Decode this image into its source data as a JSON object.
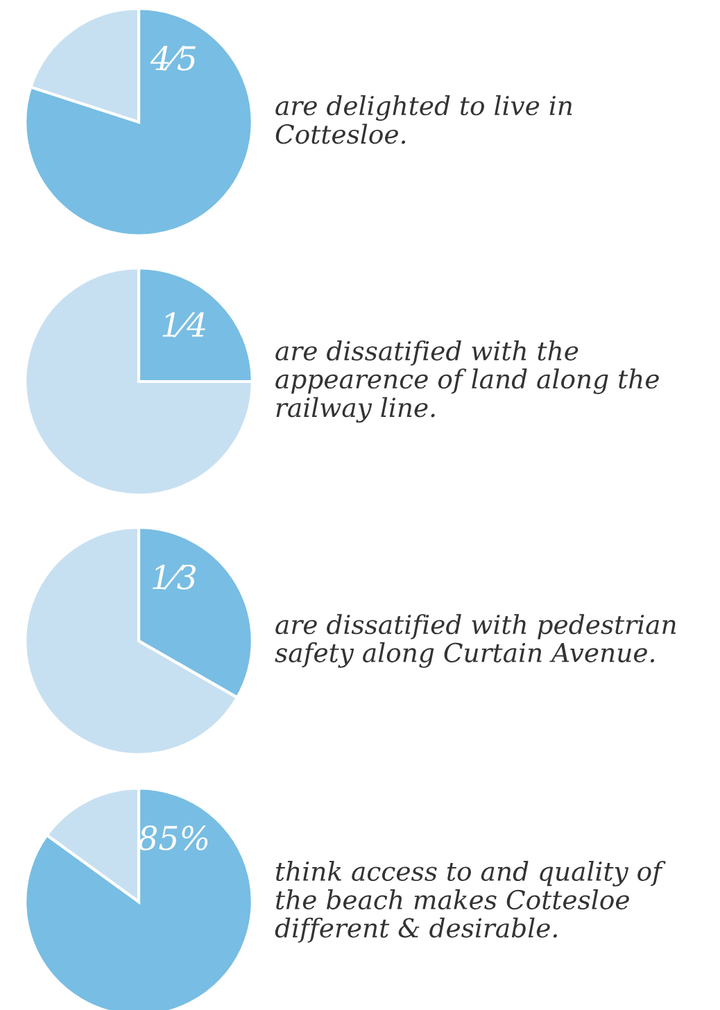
{
  "chart_data": [
    {
      "type": "pie",
      "categories": [
        null,
        null
      ],
      "values": [
        80,
        20
      ],
      "colors": [
        "#78bde3",
        "#c7e0f1"
      ],
      "annotations": [
        "4⁄5",
        "are delighted to live in\nCottesloe."
      ]
    },
    {
      "type": "pie",
      "categories": [
        null,
        null
      ],
      "values": [
        25,
        75
      ],
      "colors": [
        "#78bde3",
        "#c7e0f1"
      ],
      "annotations": [
        "1⁄4",
        "are dissatified with the\nappearence of land along the\nrailway line."
      ]
    },
    {
      "type": "pie",
      "categories": [
        null,
        null
      ],
      "values": [
        33.3,
        66.7
      ],
      "colors": [
        "#78bde3",
        "#c7e0f1"
      ],
      "annotations": [
        "1⁄3",
        "are dissatified with pedestrian\nsafety along Curtain Avenue."
      ]
    },
    {
      "type": "pie",
      "categories": [
        null,
        null
      ],
      "values": [
        85,
        15
      ],
      "colors": [
        "#78bde3",
        "#c7e0f1"
      ],
      "value_labels": [
        "85%",
        null
      ],
      "annotations": [
        "think access to and quality of\nthe beach makes Cottesloe\ndifferent & desirable."
      ]
    }
  ]
}
